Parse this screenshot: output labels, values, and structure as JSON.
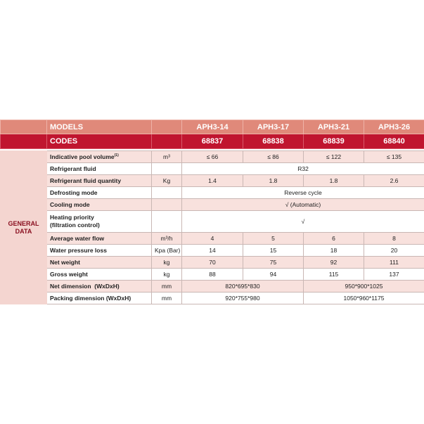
{
  "header": {
    "models_label": "MODELS",
    "codes_label": "CODES",
    "models": [
      "APH3-14",
      "APH3-17",
      "APH3-21",
      "APH3-26"
    ],
    "codes": [
      "68837",
      "68838",
      "68839",
      "68840"
    ]
  },
  "section_label": "GENERAL DATA",
  "rows": {
    "pool": {
      "name": "Indicative pool volume",
      "sup": "(1)",
      "unit": "m³",
      "values": [
        "≤ 66",
        "≤ 86",
        "≤ 122",
        "≤ 135"
      ]
    },
    "fluid": {
      "name": "Refrigerant fluid",
      "unit": "",
      "value": "R32"
    },
    "qty": {
      "name": "Refrigerant fluid quantity",
      "unit": "Kg",
      "values": [
        "1.4",
        "1.8",
        "1.8",
        "2.6"
      ]
    },
    "defrost": {
      "name": "Defrosting mode",
      "unit": "",
      "value": "Reverse cycle"
    },
    "cooling": {
      "name": "Cooling mode",
      "unit": "",
      "value": "√ (Automatic)"
    },
    "heating": {
      "name_line1": "Heating priority",
      "name_line2": "(filtration control)",
      "unit": "",
      "value": "√"
    },
    "flow": {
      "name": "Average water flow",
      "unit": "m³/h",
      "values": [
        "4",
        "5",
        "6",
        "8"
      ]
    },
    "pressure": {
      "name": "Water pressure loss",
      "unit": "Kpa (Bar)",
      "values": [
        "14",
        "15",
        "18",
        "20"
      ]
    },
    "net": {
      "name": "Net weight",
      "unit": "kg",
      "values": [
        "70",
        "75",
        "92",
        "111"
      ]
    },
    "gross": {
      "name": "Gross weight",
      "unit": "kg",
      "values": [
        "88",
        "94",
        "115",
        "137"
      ]
    },
    "netdim": {
      "name": "Net dimension  (WxDxH)",
      "unit": "mm",
      "values": [
        "820*695*830",
        "950*900*1025"
      ]
    },
    "packdim": {
      "name": "Packing dimension (WxDxH)",
      "unit": "mm",
      "values": [
        "920*755*980",
        "1050*960*1175"
      ]
    }
  },
  "colors": {
    "header": "#e0897a",
    "codes": "#c0152f",
    "row_alt": "#f8e1dd",
    "section": "#f4d5d0"
  }
}
